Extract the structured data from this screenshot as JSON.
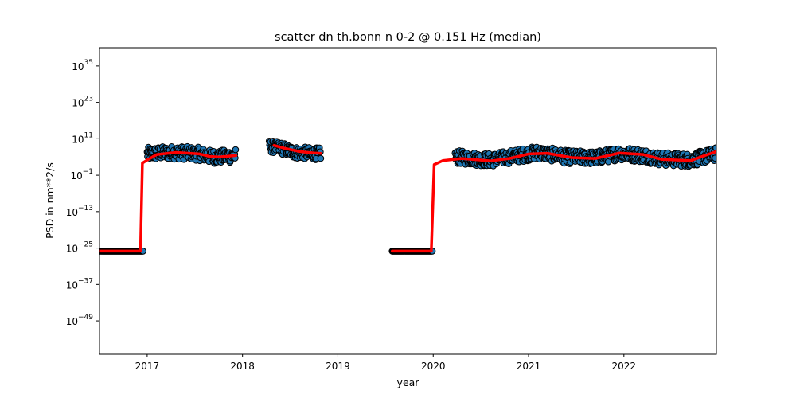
{
  "chart_data": {
    "type": "scatter",
    "title": "scatter dn th.bonn n 0-2 @ 0.151 Hz (median)",
    "xlabel": "year",
    "ylabel": "PSD in nm**2/s",
    "y_scale": "log",
    "xlim": [
      2016.5,
      2022.97
    ],
    "ylim_exponent": [
      -60,
      41
    ],
    "x_ticks": [
      {
        "value": 2017,
        "label": "2017"
      },
      {
        "value": 2018,
        "label": "2018"
      },
      {
        "value": 2019,
        "label": "2019"
      },
      {
        "value": 2020,
        "label": "2020"
      },
      {
        "value": 2021,
        "label": "2021"
      },
      {
        "value": 2022,
        "label": "2022"
      }
    ],
    "y_ticks": [
      {
        "exp": 35,
        "base": "10",
        "sup": "35"
      },
      {
        "exp": 23,
        "base": "10",
        "sup": "23"
      },
      {
        "exp": 11,
        "base": "10",
        "sup": "11"
      },
      {
        "exp": -1,
        "base": "10",
        "sup": "−1"
      },
      {
        "exp": -13,
        "base": "10",
        "sup": "−13"
      },
      {
        "exp": -25,
        "base": "10",
        "sup": "−25"
      },
      {
        "exp": -37,
        "base": "10",
        "sup": "−37"
      },
      {
        "exp": -49,
        "base": "10",
        "sup": "−49"
      }
    ],
    "colors": {
      "scatter_fill": "#1f77b4",
      "scatter_edge": "#000000",
      "median_line": "#ff0000"
    },
    "series": [
      {
        "kind": "scatter",
        "segments": [
          {
            "x_start": 2016.5,
            "x_end": 2016.96,
            "log10_y": [
              [
                2016.5,
                -26
              ],
              [
                2016.96,
                -26
              ]
            ],
            "spread": 0
          },
          {
            "x_start": 2017.0,
            "x_end": 2017.93,
            "log10_y": [
              [
                2017.0,
                6
              ],
              [
                2017.3,
                6.5
              ],
              [
                2017.55,
                6
              ],
              [
                2017.65,
                5.2
              ],
              [
                2017.75,
                5.0
              ],
              [
                2017.93,
                5.5
              ]
            ],
            "spread": 2.2
          },
          {
            "x_start": 2018.28,
            "x_end": 2018.82,
            "log10_y": [
              [
                2018.28,
                8.5
              ],
              [
                2018.4,
                8
              ],
              [
                2018.55,
                6.5
              ],
              [
                2018.82,
                6
              ]
            ],
            "spread": 2.0
          },
          {
            "x_start": 2019.57,
            "x_end": 2019.99,
            "log10_y": [
              [
                2019.57,
                -26
              ],
              [
                2019.99,
                -26
              ]
            ],
            "spread": 0
          },
          {
            "x_start": 2020.23,
            "x_end": 2022.97,
            "log10_y": [
              [
                2020.23,
                5
              ],
              [
                2020.6,
                4
              ],
              [
                2020.9,
                5.5
              ],
              [
                2021.1,
                6.5
              ],
              [
                2021.4,
                5
              ],
              [
                2021.7,
                4.7
              ],
              [
                2021.95,
                6.2
              ],
              [
                2022.2,
                5.5
              ],
              [
                2022.4,
                4.3
              ],
              [
                2022.7,
                4
              ],
              [
                2022.97,
                6
              ]
            ],
            "spread": 2.2
          }
        ]
      },
      {
        "kind": "line",
        "log10_y_points": [
          [
            2016.5,
            -26
          ],
          [
            2016.93,
            -26
          ],
          [
            2016.95,
            3
          ],
          [
            2017.0,
            4
          ],
          [
            2017.1,
            5.8
          ],
          [
            2017.3,
            6.5
          ],
          [
            2017.55,
            6
          ],
          [
            2017.65,
            5.2
          ],
          [
            2017.75,
            5.0
          ],
          [
            2017.93,
            5.5
          ],
          null,
          [
            2018.33,
            8.8
          ],
          [
            2018.45,
            7.8
          ],
          [
            2018.6,
            6.8
          ],
          [
            2018.75,
            6.3
          ],
          [
            2018.82,
            6.2
          ],
          null,
          [
            2019.57,
            -26
          ],
          [
            2019.98,
            -26
          ],
          [
            2020.01,
            2.5
          ],
          [
            2020.1,
            3.8
          ],
          [
            2020.3,
            4.5
          ],
          [
            2020.6,
            3.7
          ],
          [
            2020.8,
            4.5
          ],
          [
            2021.0,
            6
          ],
          [
            2021.2,
            6.2
          ],
          [
            2021.45,
            4.8
          ],
          [
            2021.7,
            4.5
          ],
          [
            2021.95,
            6.3
          ],
          [
            2022.2,
            5.8
          ],
          [
            2022.4,
            4.2
          ],
          [
            2022.7,
            3.8
          ],
          [
            2022.85,
            5.5
          ],
          [
            2022.97,
            6.8
          ]
        ]
      }
    ]
  }
}
